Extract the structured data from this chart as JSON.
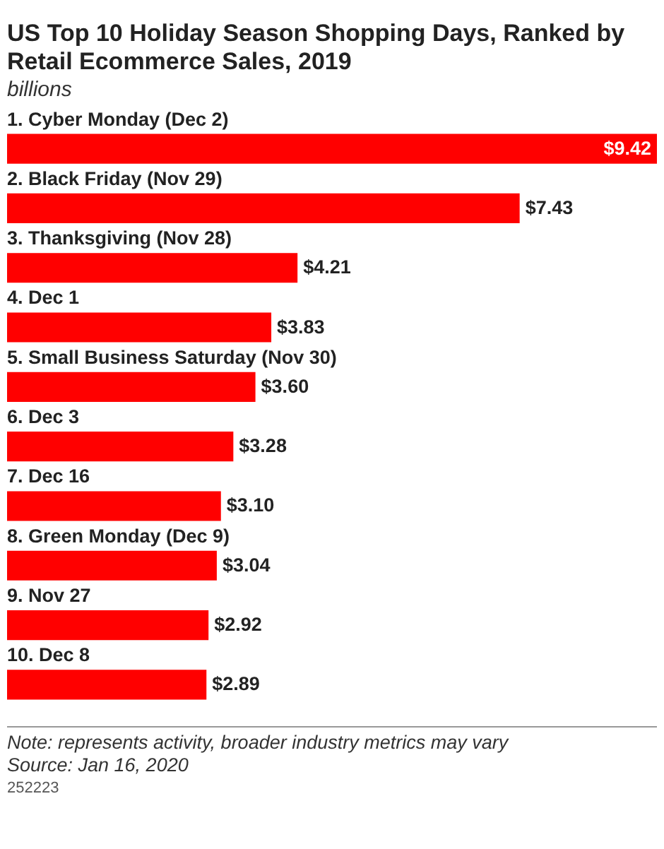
{
  "chart_data": {
    "type": "bar",
    "orientation": "horizontal",
    "title": "US Top 10 Holiday Season Shopping Days, Ranked by Retail Ecommerce Sales, 2019",
    "subtitle": "billions",
    "categories": [
      "1. Cyber Monday (Dec 2)",
      "2. Black Friday (Nov 29)",
      "3. Thanksgiving (Nov 28)",
      "4. Dec 1",
      "5. Small Business Saturday (Nov 30)",
      "6. Dec 3",
      "7. Dec 16",
      "8. Green Monday (Dec 9)",
      "9. Nov 27",
      "10. Dec 8"
    ],
    "values": [
      9.42,
      7.43,
      4.21,
      3.83,
      3.6,
      3.28,
      3.1,
      3.04,
      2.92,
      2.89
    ],
    "value_labels": [
      "$9.42",
      "$7.43",
      "$4.21",
      "$3.83",
      "$3.60",
      "$3.28",
      "$3.10",
      "$3.04",
      "$2.92",
      "$2.89"
    ],
    "color": "#ff0000",
    "annotations": [
      "Note: represents activity, broader industry metrics may vary",
      "Source: Jan 16, 2020",
      "252223"
    ]
  }
}
